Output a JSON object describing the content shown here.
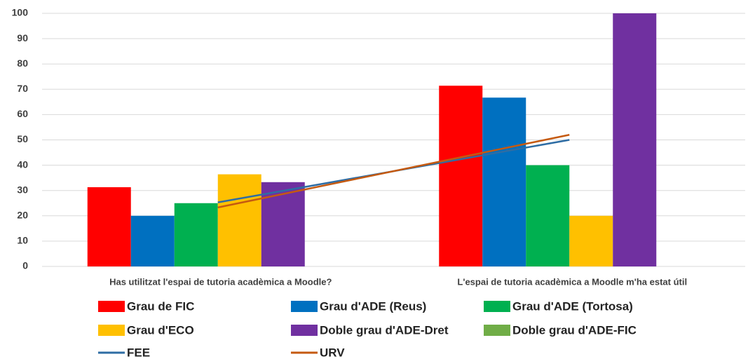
{
  "chart_data": {
    "type": "bar",
    "categories": [
      "Has utilitzat l'espai de tutoria acadèmica a Moodle?",
      "L'espai de tutoria acadèmica a Moodle m'ha estat útil"
    ],
    "series": [
      {
        "name": "Grau de FIC",
        "color": "#ff0000",
        "values": [
          31.3,
          71.4
        ]
      },
      {
        "name": "Grau d'ADE (Reus)",
        "color": "#0070c0",
        "values": [
          20,
          66.7
        ]
      },
      {
        "name": "Grau d'ADE (Tortosa)",
        "color": "#00b050",
        "values": [
          25,
          40
        ]
      },
      {
        "name": "Grau d'ECO",
        "color": "#ffc000",
        "values": [
          36.4,
          20
        ]
      },
      {
        "name": "Doble grau d'ADE-Dret",
        "color": "#7030a0",
        "values": [
          33.3,
          100
        ]
      },
      {
        "name": "Doble grau d'ADE-FIC",
        "color": "#70ad47",
        "values": [
          0,
          0
        ]
      },
      {
        "name": "FEE",
        "color": "#2e6da4",
        "type": "line",
        "values": [
          25.3,
          50
        ]
      },
      {
        "name": "URV",
        "color": "#c55a11",
        "type": "line",
        "values": [
          23.3,
          52
        ]
      }
    ],
    "ylim": [
      0,
      100
    ],
    "yticks": [
      0,
      10,
      20,
      30,
      40,
      50,
      60,
      70,
      80,
      90,
      100
    ],
    "grid": true,
    "legend": "bottom"
  }
}
